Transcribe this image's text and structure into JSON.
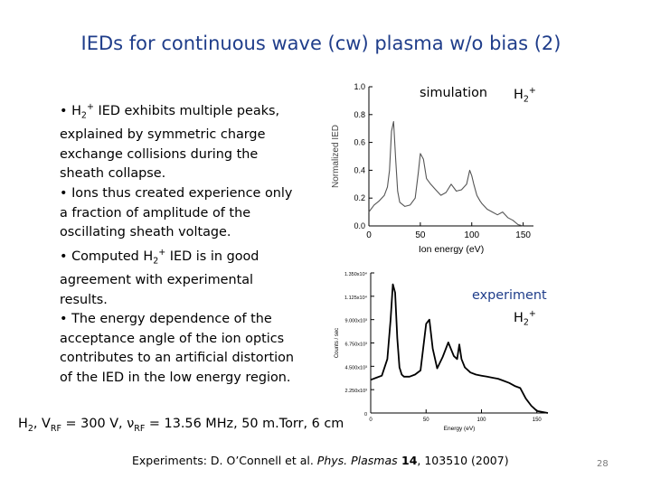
{
  "title": "IEDs for continuous wave (cw) plasma w/o bias (2)",
  "bullets": {
    "b1_pre": "• H",
    "b1_sub": "2",
    "b1_sup": "+",
    "b1_post": " IED exhibits multiple peaks, explained by symmetric charge exchange collisions during the sheath collapse.",
    "b2": "• Ions thus created experience only a fraction of amplitude of the oscillating sheath voltage.",
    "b3_pre": "• Computed H",
    "b3_sub": "2",
    "b3_sup": "+",
    "b3_post": " IED is in good agreement with experimental results.",
    "b4": "• The energy dependence of the acceptance angle of the ion optics contributes to an artificial distortion of the IED in the low energy region."
  },
  "conditions": {
    "h": "H",
    "h_sub": "2",
    "v": ", V",
    "v_sub": "RF",
    "v_val": " = 300 V, ",
    "nu": "ν",
    "nu_sub": "RF",
    "rest": " = 13.56 MHz, 50 m.Torr, 6 cm"
  },
  "reference": {
    "pre": "Experiments: D. O’Connell et al. ",
    "journal": "Phys. Plasmas",
    "volume": " 14",
    "rest": ", 103510 (2007)"
  },
  "page_number": "28",
  "sim_label": {
    "text": "simulation",
    "species": "H",
    "sub": "2",
    "sup": "+"
  },
  "exp_label": {
    "text": "experiment",
    "species": "H",
    "sub": "2",
    "sup": "+"
  },
  "chart_data": [
    {
      "type": "line",
      "xlabel": "Ion energy (eV)",
      "ylabel": "Normalized IED",
      "xlim": [
        0,
        160
      ],
      "ylim": [
        0,
        1.0
      ],
      "xticks": [
        "0",
        "50",
        "100",
        "150"
      ],
      "yticks": [
        "0.0",
        "0.2",
        "0.4",
        "0.6",
        "0.8",
        "1.0"
      ],
      "x": [
        0,
        5,
        10,
        15,
        18,
        20,
        22,
        24,
        26,
        28,
        30,
        35,
        40,
        45,
        48,
        50,
        53,
        56,
        60,
        65,
        70,
        75,
        80,
        85,
        90,
        95,
        98,
        100,
        102,
        105,
        108,
        110,
        115,
        120,
        125,
        130,
        135,
        140,
        145,
        150
      ],
      "y": [
        0.1,
        0.15,
        0.18,
        0.22,
        0.28,
        0.4,
        0.68,
        0.75,
        0.48,
        0.25,
        0.17,
        0.14,
        0.15,
        0.2,
        0.38,
        0.52,
        0.48,
        0.34,
        0.3,
        0.26,
        0.22,
        0.24,
        0.3,
        0.25,
        0.26,
        0.3,
        0.4,
        0.36,
        0.3,
        0.22,
        0.18,
        0.16,
        0.12,
        0.1,
        0.08,
        0.1,
        0.06,
        0.04,
        0.01,
        0.0
      ]
    },
    {
      "type": "line",
      "xlabel": "Energy (eV)",
      "ylabel": "Counts / sec",
      "xticks": [
        "0",
        "50",
        "100",
        "150"
      ],
      "yticks": [
        "1.350x10⁴",
        "1.125x10⁴",
        "9.000x10³",
        "6.750x10³",
        "4.500x10³",
        "2.250x10³",
        "0"
      ],
      "xlim": [
        0,
        160
      ],
      "ylim": [
        0,
        13500
      ],
      "x": [
        0,
        5,
        10,
        15,
        18,
        20,
        22,
        24,
        26,
        28,
        30,
        35,
        40,
        45,
        50,
        53,
        56,
        60,
        65,
        70,
        75,
        78,
        80,
        82,
        85,
        90,
        95,
        100,
        105,
        110,
        115,
        120,
        125,
        130,
        135,
        140,
        145,
        150,
        155,
        160
      ],
      "y": [
        3200,
        3400,
        3600,
        5200,
        9000,
        12400,
        11600,
        7200,
        4400,
        3700,
        3500,
        3500,
        3700,
        4100,
        8600,
        9000,
        6200,
        4300,
        5400,
        6800,
        5500,
        5200,
        6600,
        5200,
        4400,
        3900,
        3700,
        3600,
        3500,
        3400,
        3300,
        3100,
        2900,
        2600,
        2400,
        1400,
        700,
        200,
        100,
        0
      ]
    }
  ]
}
